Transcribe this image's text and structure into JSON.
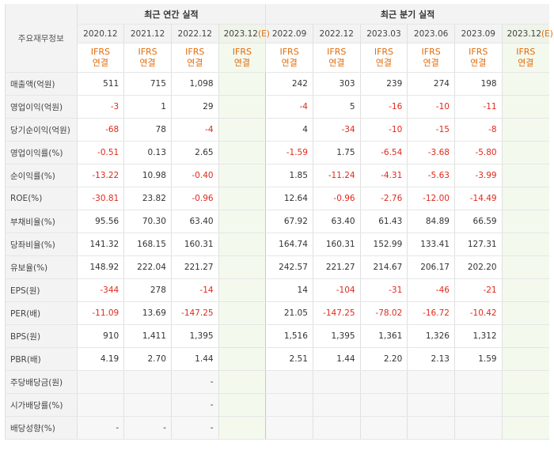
{
  "header": {
    "row_label": "주요재무정보",
    "annual_title": "최근 연간 실적",
    "quarter_title": "최근 분기 실적",
    "annual_periods": [
      "2020.12",
      "2021.12",
      "2022.12",
      "2023.12(E)"
    ],
    "quarter_periods": [
      "2022.09",
      "2022.12",
      "2023.03",
      "2023.06",
      "2023.09",
      "2023.12(E)"
    ],
    "ifrs_top": "IFRS",
    "ifrs_bottom": "연결"
  },
  "rows": [
    {
      "label": "매출액(억원)",
      "values": [
        "511",
        "715",
        "1,098",
        "",
        "242",
        "303",
        "239",
        "274",
        "198",
        ""
      ]
    },
    {
      "label": "영업이익(억원)",
      "values": [
        "-3",
        "1",
        "29",
        "",
        "-4",
        "5",
        "-16",
        "-10",
        "-11",
        ""
      ]
    },
    {
      "label": "당기순이익(억원)",
      "values": [
        "-68",
        "78",
        "-4",
        "",
        "4",
        "-34",
        "-10",
        "-15",
        "-8",
        ""
      ]
    },
    {
      "label": "영업이익률(%)",
      "values": [
        "-0.51",
        "0.13",
        "2.65",
        "",
        "-1.59",
        "1.75",
        "-6.54",
        "-3.68",
        "-5.80",
        ""
      ]
    },
    {
      "label": "순이익률(%)",
      "values": [
        "-13.22",
        "10.98",
        "-0.40",
        "",
        "1.85",
        "-11.24",
        "-4.31",
        "-5.63",
        "-3.99",
        ""
      ]
    },
    {
      "label": "ROE(%)",
      "values": [
        "-30.81",
        "23.82",
        "-0.96",
        "",
        "12.64",
        "-0.96",
        "-2.76",
        "-12.00",
        "-14.49",
        ""
      ]
    },
    {
      "label": "부채비율(%)",
      "values": [
        "95.56",
        "70.30",
        "63.40",
        "",
        "67.92",
        "63.40",
        "61.43",
        "84.89",
        "66.59",
        ""
      ]
    },
    {
      "label": "당좌비율(%)",
      "values": [
        "141.32",
        "168.15",
        "160.31",
        "",
        "164.74",
        "160.31",
        "152.99",
        "133.41",
        "127.31",
        ""
      ]
    },
    {
      "label": "유보율(%)",
      "values": [
        "148.92",
        "222.04",
        "221.27",
        "",
        "242.57",
        "221.27",
        "214.67",
        "206.17",
        "202.20",
        ""
      ]
    },
    {
      "label": "EPS(원)",
      "values": [
        "-344",
        "278",
        "-14",
        "",
        "14",
        "-104",
        "-31",
        "-46",
        "-21",
        ""
      ]
    },
    {
      "label": "PER(배)",
      "values": [
        "-11.09",
        "13.69",
        "-147.25",
        "",
        "21.05",
        "-147.25",
        "-78.02",
        "-16.72",
        "-10.42",
        ""
      ]
    },
    {
      "label": "BPS(원)",
      "values": [
        "910",
        "1,411",
        "1,395",
        "",
        "1,516",
        "1,395",
        "1,361",
        "1,326",
        "1,312",
        ""
      ]
    },
    {
      "label": "PBR(배)",
      "values": [
        "4.19",
        "2.70",
        "1.44",
        "",
        "2.51",
        "1.44",
        "2.20",
        "2.13",
        "1.59",
        ""
      ]
    },
    {
      "label": "주당배당금(원)",
      "values": [
        "",
        "",
        "-",
        "",
        "",
        "",
        "",
        "",
        "",
        ""
      ]
    },
    {
      "label": "시가배당률(%)",
      "values": [
        "",
        "",
        "-",
        "",
        "",
        "",
        "",
        "",
        "",
        ""
      ]
    },
    {
      "label": "배당성향(%)",
      "values": [
        "-",
        "-",
        "-",
        "",
        "",
        "",
        "",
        "",
        "",
        ""
      ]
    }
  ]
}
